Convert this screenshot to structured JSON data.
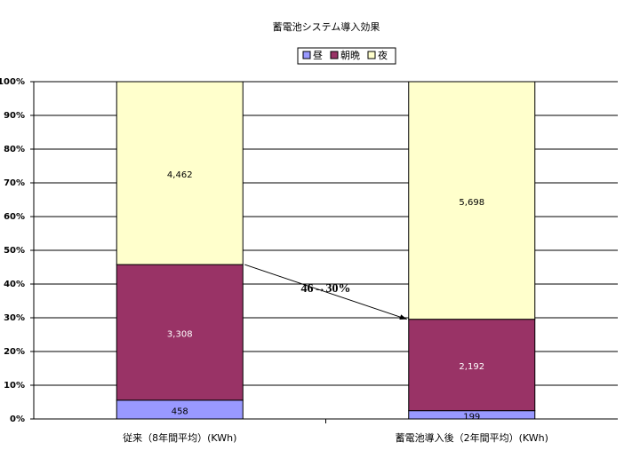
{
  "chart_data": {
    "type": "bar",
    "stack": "percent",
    "title": "蓄電池システム導入効果",
    "categories": [
      "従来（8年間平均）(KWh)",
      "蓄電池導入後（2年間平均）(KWh)"
    ],
    "series": [
      {
        "name": "昼",
        "color": "#9999ff",
        "values": [
          458,
          199
        ],
        "value_labels": [
          "458",
          "199"
        ]
      },
      {
        "name": "朝晩",
        "color": "#993366",
        "values": [
          3308,
          2192
        ],
        "value_labels": [
          "3,308",
          "2,192"
        ]
      },
      {
        "name": "夜",
        "color": "#ffffcc",
        "values": [
          4462,
          5698
        ],
        "value_labels": [
          "4,462",
          "5,698"
        ]
      }
    ],
    "ylim": [
      0,
      100
    ],
    "yticks": [
      {
        "value": 0,
        "label": "0%"
      },
      {
        "value": 10,
        "label": "10%"
      },
      {
        "value": 20,
        "label": "20%"
      },
      {
        "value": 30,
        "label": "30%"
      },
      {
        "value": 40,
        "label": "40%"
      },
      {
        "value": 50,
        "label": "50%"
      },
      {
        "value": 60,
        "label": "60%"
      },
      {
        "value": 70,
        "label": "70%"
      },
      {
        "value": 80,
        "label": "80%"
      },
      {
        "value": 90,
        "label": "90%"
      },
      {
        "value": 100,
        "label": "100%"
      }
    ],
    "grid": true,
    "legend": "top",
    "annotation": "46→30%"
  }
}
